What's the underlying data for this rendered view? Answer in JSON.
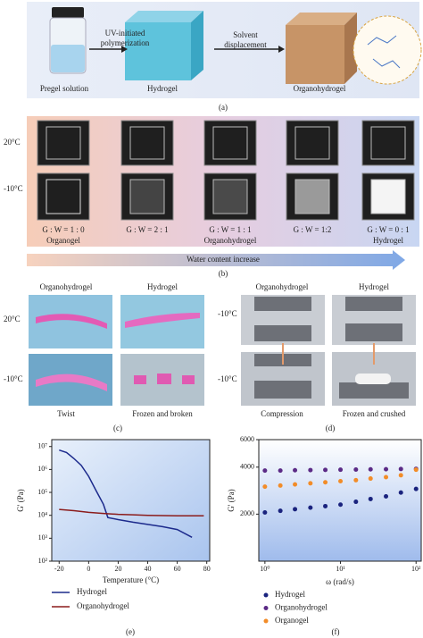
{
  "panel_a": {
    "steps": [
      [
        "UV-initiated",
        "polymerization"
      ],
      [
        "Solvent",
        "displacement"
      ]
    ],
    "items": [
      "Pregel solution",
      "Hydrogel",
      "Organohydrogel"
    ],
    "label": "(a)"
  },
  "panel_b": {
    "row_labels": [
      "20°C",
      "-10°C"
    ],
    "ratios": [
      "G : W = 1 : 0",
      "G : W = 2 : 1",
      "G : W = 1 : 1",
      "G : W = 1:2",
      "G : W = 0 : 1"
    ],
    "group_labels": [
      "Organogel",
      "Organohydrogel",
      "Hydrogel"
    ],
    "arrow": "Water content increase",
    "label": "(b)"
  },
  "panel_c": {
    "headers": [
      "Organohydrogel",
      "Hydrogel"
    ],
    "row_labels": [
      "20°C",
      "-10°C"
    ],
    "captions": [
      "Twist",
      "Frozen and broken"
    ],
    "label": "(c)"
  },
  "panel_d": {
    "headers": [
      "Organohydrogel",
      "Hydrogel"
    ],
    "row_labels": [
      "-10°C",
      "-10°C"
    ],
    "captions": [
      "Compression",
      "Frozen and crushed"
    ],
    "label": "(d)"
  },
  "chart_data": [
    {
      "type": "line",
      "panel_label": "(e)",
      "xlabel": "Temperature (°C)",
      "ylabel": "G' (Pa)",
      "xlim": [
        -25,
        82
      ],
      "xticks": [
        -20,
        0,
        20,
        40,
        60,
        80
      ],
      "ylim": [
        100,
        20000000
      ],
      "ylog": true,
      "yticks": [
        {
          "value": 100,
          "label": "10²"
        },
        {
          "value": 1000,
          "label": "10³"
        },
        {
          "value": 10000,
          "label": "10⁴"
        },
        {
          "value": 100000,
          "label": "10⁵"
        },
        {
          "value": 1000000,
          "label": "10⁶"
        },
        {
          "value": 10000000,
          "label": "10⁷"
        }
      ],
      "series": [
        {
          "name": "Hydrogel",
          "color": "#1c2a8c",
          "x": [
            -20,
            -15,
            -10,
            -5,
            0,
            5,
            10,
            13,
            20,
            30,
            40,
            50,
            60,
            70
          ],
          "values": [
            7000000,
            5500000,
            3000000,
            1500000,
            500000,
            120000,
            30000,
            8000,
            6500,
            5000,
            4000,
            3200,
            2400,
            1100
          ]
        },
        {
          "name": "Organohydrogel",
          "color": "#8b1c1c",
          "x": [
            -20,
            -10,
            0,
            10,
            20,
            30,
            40,
            50,
            60,
            70,
            78
          ],
          "values": [
            18000,
            16000,
            13500,
            12000,
            11000,
            10500,
            10000,
            9700,
            9500,
            9500,
            9500
          ]
        }
      ]
    },
    {
      "type": "scatter",
      "panel_label": "(f)",
      "xlabel": "ω (rad/s)",
      "ylabel": "G' (Pa)",
      "xlim": [
        0.83,
        117
      ],
      "xlog": true,
      "xticks": [
        {
          "value": 1,
          "label": "10⁰"
        },
        {
          "value": 10,
          "label": "10¹"
        },
        {
          "value": 100,
          "label": "10²"
        }
      ],
      "ylim": [
        1000,
        6000
      ],
      "ylog": true,
      "yticks": [
        2000,
        4000,
        6000
      ],
      "x": [
        1,
        1.6,
        2.5,
        4,
        6.3,
        10,
        16,
        25,
        40,
        63,
        100
      ],
      "series": [
        {
          "name": "Hydrogel",
          "color": "#1a237e",
          "values": [
            2050,
            2100,
            2150,
            2200,
            2250,
            2300,
            2400,
            2500,
            2600,
            2750,
            2900
          ]
        },
        {
          "name": "Organohydrogel",
          "color": "#5b2a86",
          "values": [
            3800,
            3800,
            3820,
            3830,
            3840,
            3850,
            3860,
            3870,
            3880,
            3890,
            3900
          ]
        },
        {
          "name": "Organogel",
          "color": "#f28c28",
          "values": [
            3000,
            3050,
            3100,
            3150,
            3200,
            3250,
            3300,
            3380,
            3450,
            3550,
            3850
          ]
        }
      ]
    }
  ]
}
